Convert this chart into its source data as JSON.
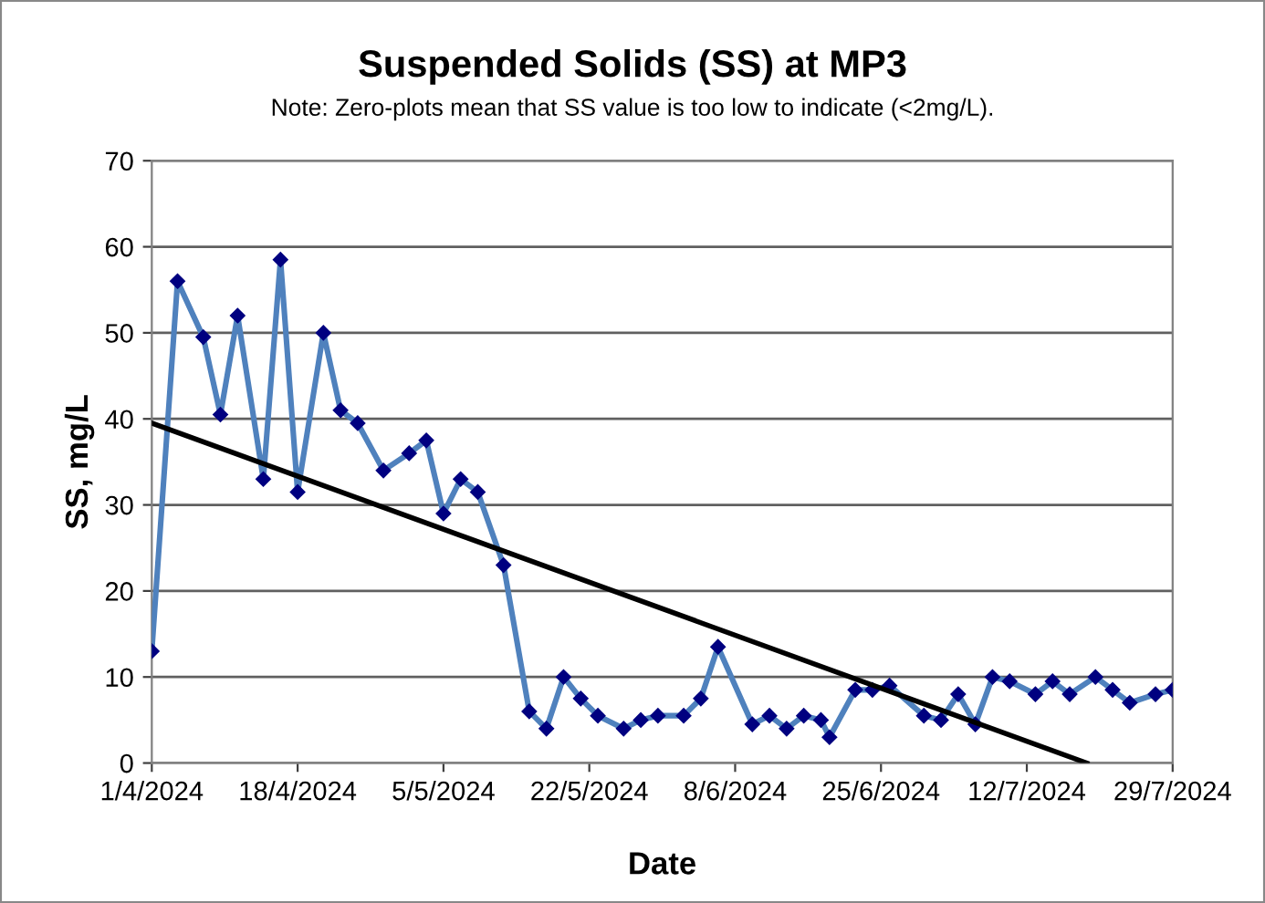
{
  "chart_data": {
    "type": "line",
    "title": "Suspended Solids (SS) at MP3",
    "subtitle": "Note: Zero-plots mean that SS value is too low to indicate (<2mg/L).",
    "xlabel": "Date",
    "ylabel": "SS, mg/L",
    "xlim": [
      "2024-04-01",
      "2024-07-29"
    ],
    "xticks": [
      {
        "value": "2024-04-01",
        "label": "1/4/2024"
      },
      {
        "value": "2024-04-18",
        "label": "18/4/2024"
      },
      {
        "value": "2024-05-05",
        "label": "5/5/2024"
      },
      {
        "value": "2024-05-22",
        "label": "22/5/2024"
      },
      {
        "value": "2024-06-08",
        "label": "8/6/2024"
      },
      {
        "value": "2024-06-25",
        "label": "25/6/2024"
      },
      {
        "value": "2024-07-12",
        "label": "12/7/2024"
      },
      {
        "value": "2024-07-29",
        "label": "29/7/2024"
      }
    ],
    "ylim": [
      0,
      70
    ],
    "yticks": [
      0,
      10,
      20,
      30,
      40,
      50,
      60,
      70
    ],
    "grid": "y",
    "legend": false,
    "series": [
      {
        "color": "#4f81bd",
        "marker": "diamond",
        "x": [
          "2024-04-01",
          "2024-04-04",
          "2024-04-07",
          "2024-04-09",
          "2024-04-11",
          "2024-04-14",
          "2024-04-16",
          "2024-04-18",
          "2024-04-21",
          "2024-04-23",
          "2024-04-25",
          "2024-04-28",
          "2024-05-01",
          "2024-05-03",
          "2024-05-05",
          "2024-05-07",
          "2024-05-09",
          "2024-05-12",
          "2024-05-15",
          "2024-05-17",
          "2024-05-19",
          "2024-05-21",
          "2024-05-23",
          "2024-05-26",
          "2024-05-28",
          "2024-05-30",
          "2024-06-02",
          "2024-06-04",
          "2024-06-06",
          "2024-06-10",
          "2024-06-12",
          "2024-06-14",
          "2024-06-16",
          "2024-06-18",
          "2024-06-19",
          "2024-06-22",
          "2024-06-24",
          "2024-06-26",
          "2024-06-30",
          "2024-07-02",
          "2024-07-04",
          "2024-07-06",
          "2024-07-08",
          "2024-07-10",
          "2024-07-13",
          "2024-07-15",
          "2024-07-17",
          "2024-07-20",
          "2024-07-22",
          "2024-07-24",
          "2024-07-27",
          "2024-07-29"
        ],
        "values": [
          13,
          56,
          49.5,
          40.5,
          52,
          33,
          58.5,
          31.5,
          50,
          41,
          39.5,
          34,
          36,
          37.5,
          29,
          33,
          31.5,
          23,
          6,
          4,
          10,
          7.5,
          5.5,
          4,
          5,
          5.5,
          5.5,
          7.5,
          13.5,
          4.5,
          5.5,
          4,
          5.5,
          5,
          3,
          8.5,
          8.5,
          9,
          5.5,
          5,
          8,
          4.5,
          10,
          9.5,
          8,
          9.5,
          8,
          10,
          8.5,
          7,
          8,
          8.5
        ]
      },
      {
        "color": "#000000",
        "marker": "none",
        "x": [
          "2024-04-01",
          "2024-07-19"
        ],
        "values": [
          39.5,
          0
        ]
      }
    ]
  }
}
